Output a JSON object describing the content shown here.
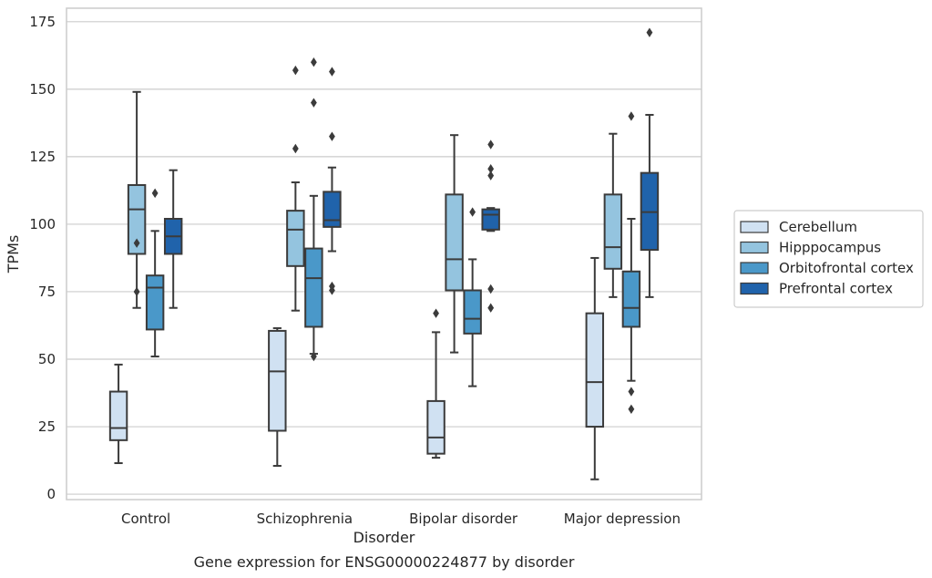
{
  "chart_data": {
    "type": "boxplot",
    "title": "",
    "caption": "Gene expression for ENSG00000224877 by disorder",
    "xlabel": "Disorder",
    "ylabel": "TPMs",
    "ylim": [
      -2,
      180
    ],
    "yticks": [
      0,
      25,
      50,
      75,
      100,
      125,
      150,
      175
    ],
    "grid": "horizontal",
    "legend_position": "right",
    "categories": [
      "Control",
      "Schizophrenia",
      "Bipolar disorder",
      "Major depression"
    ],
    "series": [
      {
        "name": "Cerebellum",
        "color": "#d0e1f2",
        "boxes": [
          {
            "whislo": 11.5,
            "q1": 20,
            "med": 24.5,
            "q3": 38,
            "whishi": 48,
            "fliers": []
          },
          {
            "whislo": 10.5,
            "q1": 23.5,
            "med": 45.5,
            "q3": 60.5,
            "whishi": 61.5,
            "fliers": []
          },
          {
            "whislo": 13.5,
            "q1": 15,
            "med": 21,
            "q3": 34.5,
            "whishi": 60,
            "fliers": [
              67
            ]
          },
          {
            "whislo": 5.5,
            "q1": 25,
            "med": 41.5,
            "q3": 67,
            "whishi": 87.5,
            "fliers": []
          }
        ]
      },
      {
        "name": "Hipppocampus",
        "color": "#94c4df",
        "boxes": [
          {
            "whislo": 69,
            "q1": 89,
            "med": 105.5,
            "q3": 114.5,
            "whishi": 149,
            "fliers": [
              75,
              93
            ]
          },
          {
            "whislo": 68,
            "q1": 84.5,
            "med": 98,
            "q3": 105,
            "whishi": 115.5,
            "fliers": [
              128,
              157
            ]
          },
          {
            "whislo": 52.5,
            "q1": 75.5,
            "med": 87,
            "q3": 111,
            "whishi": 133,
            "fliers": []
          },
          {
            "whislo": 73,
            "q1": 83.5,
            "med": 91.5,
            "q3": 111,
            "whishi": 133.5,
            "fliers": []
          }
        ]
      },
      {
        "name": "Orbitofrontal cortex",
        "color": "#4a98c9",
        "boxes": [
          {
            "whislo": 51,
            "q1": 61,
            "med": 76.5,
            "q3": 81,
            "whishi": 97.5,
            "fliers": [
              111.5
            ]
          },
          {
            "whislo": 52,
            "q1": 62,
            "med": 80,
            "q3": 91,
            "whishi": 110.5,
            "fliers": [
              51,
              145,
              160
            ]
          },
          {
            "whislo": 40,
            "q1": 59.5,
            "med": 65,
            "q3": 75.5,
            "whishi": 87,
            "fliers": [
              104.5
            ]
          },
          {
            "whislo": 42,
            "q1": 62,
            "med": 69,
            "q3": 82.5,
            "whishi": 102,
            "fliers": [
              31.5,
              38,
              140
            ]
          }
        ]
      },
      {
        "name": "Prefrontal cortex",
        "color": "#2063ab",
        "boxes": [
          {
            "whislo": 69,
            "q1": 89,
            "med": 95.5,
            "q3": 102,
            "whishi": 120,
            "fliers": []
          },
          {
            "whislo": 90,
            "q1": 99,
            "med": 101.5,
            "q3": 112,
            "whishi": 121,
            "fliers": [
              75.5,
              77,
              132.5,
              156.5
            ]
          },
          {
            "whislo": 97.5,
            "q1": 98,
            "med": 103.5,
            "q3": 105.5,
            "whishi": 106,
            "fliers": [
              69,
              76,
              118,
              120.5,
              129.5
            ]
          },
          {
            "whislo": 73,
            "q1": 90.5,
            "med": 104.5,
            "q3": 119,
            "whishi": 140.5,
            "fliers": [
              171
            ]
          }
        ]
      }
    ]
  }
}
